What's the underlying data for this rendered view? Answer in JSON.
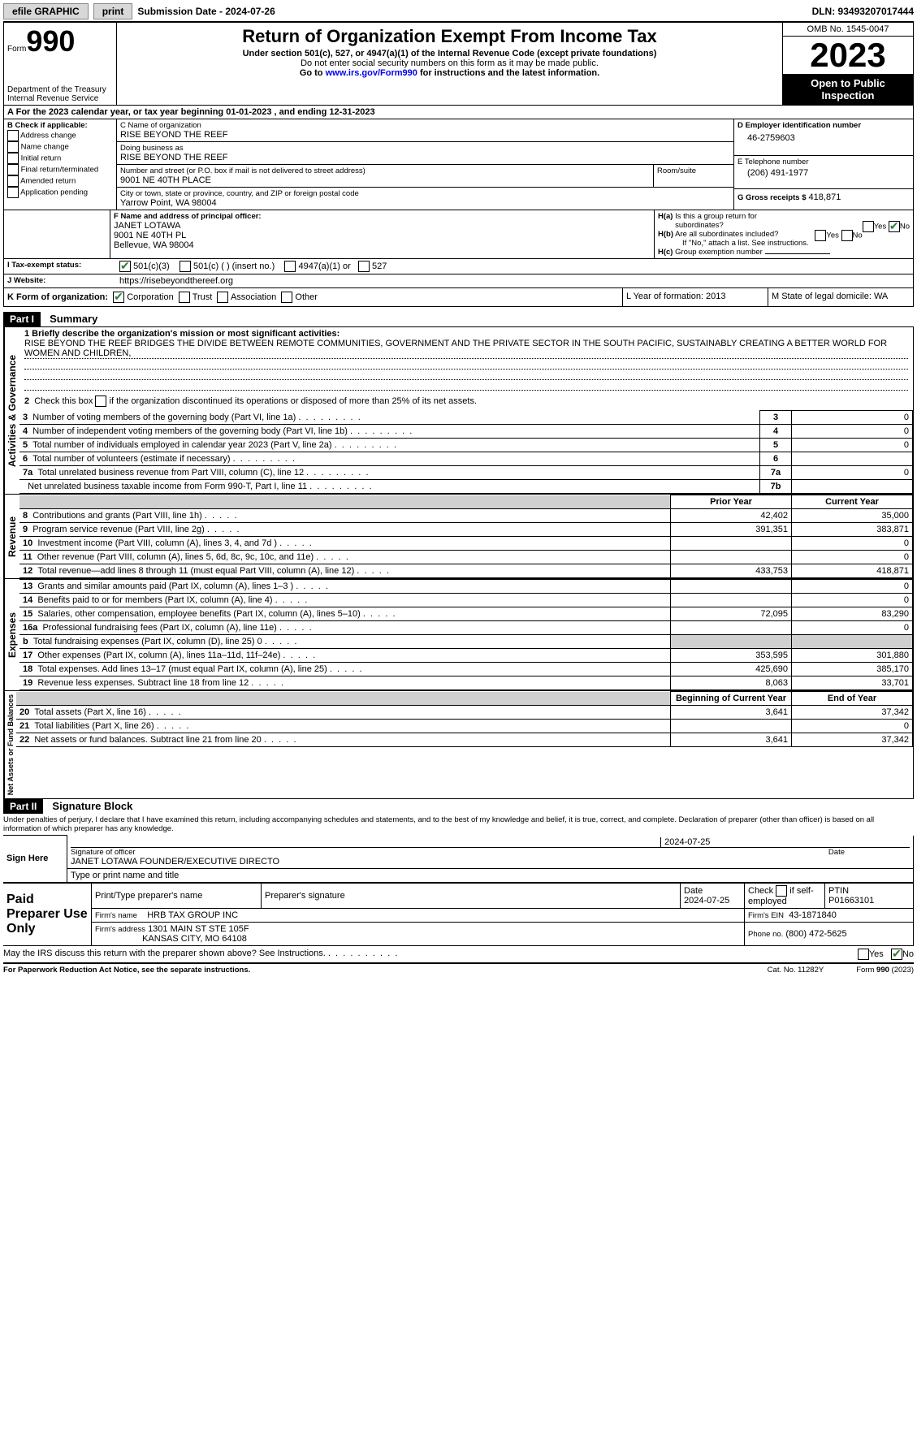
{
  "topbar": {
    "efile": "efile GRAPHIC",
    "print": "print",
    "submission_label": "Submission Date - 2024-07-26",
    "dln": "DLN: 93493207017444"
  },
  "header": {
    "form_prefix": "Form",
    "form_number": "990",
    "dept": "Department of the Treasury\nInternal Revenue Service",
    "title": "Return of Organization Exempt From Income Tax",
    "sub1": "Under section 501(c), 527, or 4947(a)(1) of the Internal Revenue Code (except private foundations)",
    "sub2": "Do not enter social security numbers on this form as it may be made public.",
    "sub3_prefix": "Go to ",
    "sub3_link": "www.irs.gov/Form990",
    "sub3_suffix": " for instructions and the latest information.",
    "omb": "OMB No. 1545-0047",
    "year": "2023",
    "inspect": "Open to Public Inspection"
  },
  "line_a": "For the 2023 calendar year, or tax year beginning 01-01-2023    , and ending 12-31-2023",
  "box_b": {
    "label": "B Check if applicable:",
    "items": [
      "Address change",
      "Name change",
      "Initial return",
      "Final return/terminated",
      "Amended return",
      "Application pending"
    ]
  },
  "box_c": {
    "label_name": "C Name of organization",
    "name": "RISE BEYOND THE REEF",
    "dba_label": "Doing business as",
    "dba": "RISE BEYOND THE REEF",
    "street_label": "Number and street (or P.O. box if mail is not delivered to street address)",
    "street": "9001 NE 40TH PLACE",
    "room_label": "Room/suite",
    "city_label": "City or town, state or province, country, and ZIP or foreign postal code",
    "city": "Yarrow Point, WA  98004"
  },
  "box_d": {
    "label": "D Employer identification number",
    "value": "46-2759603"
  },
  "box_e": {
    "label": "E Telephone number",
    "value": "(206) 491-1977"
  },
  "box_g": {
    "label": "G Gross receipts $",
    "value": "418,871"
  },
  "box_f": {
    "label": "F  Name and address of principal officer:",
    "line1": "JANET LOTAWA",
    "line2": "9001 NE 40TH PL",
    "line3": "Bellevue, WA  98004"
  },
  "box_h": {
    "a": "H(a)  Is this a group return for subordinates?",
    "b": "H(b)  Are all subordinates included?",
    "b_note": "If \"No,\" attach a list. See instructions.",
    "c": "H(c)  Group exemption number",
    "yes": "Yes",
    "no": "No"
  },
  "box_i": {
    "label": "I    Tax-exempt status:",
    "opts": [
      "501(c)(3)",
      "501(c) (  ) (insert no.)",
      "4947(a)(1) or",
      "527"
    ]
  },
  "box_j": {
    "label": "J    Website:",
    "value": "https://risebeyondthereef.org"
  },
  "box_k": {
    "label": "K Form of organization:",
    "opts": [
      "Corporation",
      "Trust",
      "Association",
      "Other"
    ]
  },
  "box_l": {
    "label": "L Year of formation: 2013"
  },
  "box_m": {
    "label": "M State of legal domicile: WA"
  },
  "part1": {
    "bar": "Part I",
    "title": "Summary",
    "q1_label": "1  Briefly describe the organization's mission or most significant activities:",
    "q1_text": "RISE BEYOND THE REEF BRIDGES THE DIVIDE BETWEEN REMOTE COMMUNITIES, GOVERNMENT AND THE PRIVATE SECTOR IN THE SOUTH PACIFIC, SUSTAINABLY CREATING A BETTER WORLD FOR WOMEN AND CHILDREN,",
    "q2": "2   Check this box      if the organization discontinued its operations or disposed of more than 25% of its net assets.",
    "rows_top": [
      {
        "n": "3",
        "t": "Number of voting members of the governing body (Part VI, line 1a)",
        "b": "3",
        "v": "0"
      },
      {
        "n": "4",
        "t": "Number of independent voting members of the governing body (Part VI, line 1b)",
        "b": "4",
        "v": "0"
      },
      {
        "n": "5",
        "t": "Total number of individuals employed in calendar year 2023 (Part V, line 2a)",
        "b": "5",
        "v": "0"
      },
      {
        "n": "6",
        "t": "Total number of volunteers (estimate if necessary)",
        "b": "6",
        "v": ""
      },
      {
        "n": "7a",
        "t": "Total unrelated business revenue from Part VIII, column (C), line 12",
        "b": "7a",
        "v": "0"
      },
      {
        "n": "",
        "t": "Net unrelated business taxable income from Form 990-T, Part I, line 11",
        "b": "7b",
        "v": ""
      }
    ],
    "col_prior": "Prior Year",
    "col_current": "Current Year",
    "revenue": [
      {
        "n": "8",
        "t": "Contributions and grants (Part VIII, line 1h)",
        "p": "42,402",
        "c": "35,000"
      },
      {
        "n": "9",
        "t": "Program service revenue (Part VIII, line 2g)",
        "p": "391,351",
        "c": "383,871"
      },
      {
        "n": "10",
        "t": "Investment income (Part VIII, column (A), lines 3, 4, and 7d )",
        "p": "",
        "c": "0"
      },
      {
        "n": "11",
        "t": "Other revenue (Part VIII, column (A), lines 5, 6d, 8c, 9c, 10c, and 11e)",
        "p": "",
        "c": "0"
      },
      {
        "n": "12",
        "t": "Total revenue—add lines 8 through 11 (must equal Part VIII, column (A), line 12)",
        "p": "433,753",
        "c": "418,871"
      }
    ],
    "expenses": [
      {
        "n": "13",
        "t": "Grants and similar amounts paid (Part IX, column (A), lines 1–3 )",
        "p": "",
        "c": "0"
      },
      {
        "n": "14",
        "t": "Benefits paid to or for members (Part IX, column (A), line 4)",
        "p": "",
        "c": "0"
      },
      {
        "n": "15",
        "t": "Salaries, other compensation, employee benefits (Part IX, column (A), lines 5–10)",
        "p": "72,095",
        "c": "83,290"
      },
      {
        "n": "16a",
        "t": "Professional fundraising fees (Part IX, column (A), line 11e)",
        "p": "",
        "c": "0"
      },
      {
        "n": "b",
        "t": "Total fundraising expenses (Part IX, column (D), line 25) 0",
        "p": "shade",
        "c": "shade"
      },
      {
        "n": "17",
        "t": "Other expenses (Part IX, column (A), lines 11a–11d, 11f–24e)",
        "p": "353,595",
        "c": "301,880"
      },
      {
        "n": "18",
        "t": "Total expenses. Add lines 13–17 (must equal Part IX, column (A), line 25)",
        "p": "425,690",
        "c": "385,170"
      },
      {
        "n": "19",
        "t": "Revenue less expenses. Subtract line 18 from line 12",
        "p": "8,063",
        "c": "33,701"
      }
    ],
    "col_begin": "Beginning of Current Year",
    "col_end": "End of Year",
    "net": [
      {
        "n": "20",
        "t": "Total assets (Part X, line 16)",
        "p": "3,641",
        "c": "37,342"
      },
      {
        "n": "21",
        "t": "Total liabilities (Part X, line 26)",
        "p": "",
        "c": "0"
      },
      {
        "n": "22",
        "t": "Net assets or fund balances. Subtract line 21 from line 20",
        "p": "3,641",
        "c": "37,342"
      }
    ],
    "side_ag": "Activities & Governance",
    "side_rev": "Revenue",
    "side_exp": "Expenses",
    "side_net": "Net Assets or Fund Balances"
  },
  "part2": {
    "bar": "Part II",
    "title": "Signature Block",
    "perjury": "Under penalties of perjury, I declare that I have examined this return, including accompanying schedules and statements, and to the best of my knowledge and belief, it is true, correct, and complete. Declaration of preparer (other than officer) is based on all information of which preparer has any knowledge.",
    "sign_here": "Sign Here",
    "sig_date": "2024-07-25",
    "sig_officer_label": "Signature of officer",
    "sig_officer": "JANET LOTAWA  FOUNDER/EXECUTIVE DIRECTO",
    "sig_date_label": "Date",
    "type_label": "Type or print name and title",
    "paid": "Paid Preparer Use Only",
    "prep_name_label": "Print/Type preparer's name",
    "prep_sig_label": "Preparer's signature",
    "prep_date": "Date\n2024-07-25",
    "prep_check": "Check       if self-employed",
    "ptin_label": "PTIN",
    "ptin": "P01663101",
    "firm_name_label": "Firm's name",
    "firm_name": "HRB TAX GROUP INC",
    "firm_ein_label": "Firm's EIN",
    "firm_ein": "43-1871840",
    "firm_addr_label": "Firm's address",
    "firm_addr1": "1301 MAIN ST STE 105F",
    "firm_addr2": "KANSAS CITY, MO  64108",
    "phone_label": "Phone no.",
    "phone": "(800) 472-5625",
    "discuss": "May the IRS discuss this return with the preparer shown above? See Instructions.",
    "yes": "Yes",
    "no": "No"
  },
  "footer": {
    "left": "For Paperwork Reduction Act Notice, see the separate instructions.",
    "mid": "Cat. No. 11282Y",
    "right": "Form 990 (2023)"
  }
}
